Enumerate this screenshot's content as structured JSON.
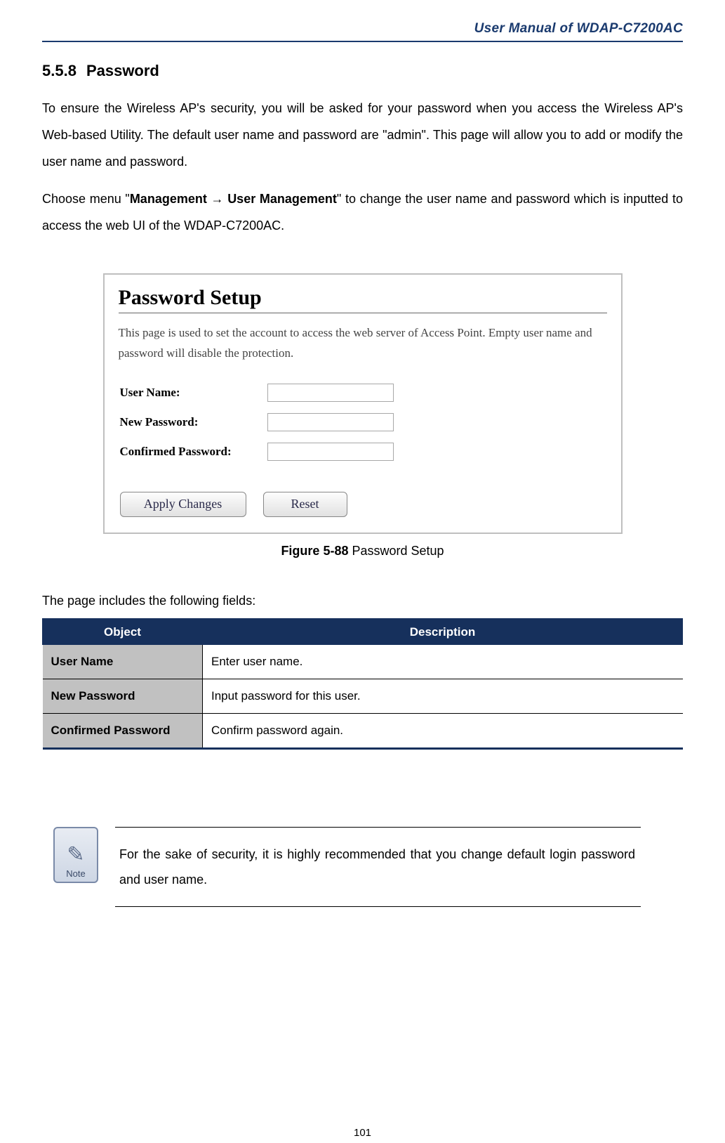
{
  "header": {
    "doc_title": "User Manual of WDAP-C7200AC"
  },
  "section": {
    "number": "5.5.8",
    "title": "Password"
  },
  "intro": {
    "p1": "To ensure the Wireless AP's security, you will be asked for your password when you access the Wireless AP's Web-based Utility. The default user name and password are \"admin\". This page will allow you to add or modify the user name and password.",
    "p2_pre": "Choose menu \"",
    "p2_menu1": "Management",
    "p2_arrow": " → ",
    "p2_menu2": "User Management",
    "p2_post": "\" to change the user name and password which is inputted to access the web UI of the WDAP-C7200AC."
  },
  "screenshot": {
    "title": "Password Setup",
    "desc": "This page is used to set the account to access the web server of Access Point. Empty user name and password will disable the protection.",
    "fields": {
      "username_label": "User Name:",
      "newpass_label": "New Password:",
      "confirm_label": "Confirmed Password:"
    },
    "buttons": {
      "apply": "Apply Changes",
      "reset": "Reset"
    }
  },
  "figure": {
    "num": "Figure 5-88",
    "caption": " Password Setup"
  },
  "fields_intro": "The page includes the following fields:",
  "table": {
    "headers": {
      "object": "Object",
      "description": "Description"
    },
    "rows": [
      {
        "obj": "User Name",
        "desc": "Enter user name."
      },
      {
        "obj": "New Password",
        "desc": "Input password for this user."
      },
      {
        "obj": "Confirmed Password",
        "desc": "Confirm password again."
      }
    ]
  },
  "note": {
    "icon_label": "Note",
    "text": "For the sake of security, it is highly recommended that you change default login password and user name."
  },
  "page_number": "101"
}
